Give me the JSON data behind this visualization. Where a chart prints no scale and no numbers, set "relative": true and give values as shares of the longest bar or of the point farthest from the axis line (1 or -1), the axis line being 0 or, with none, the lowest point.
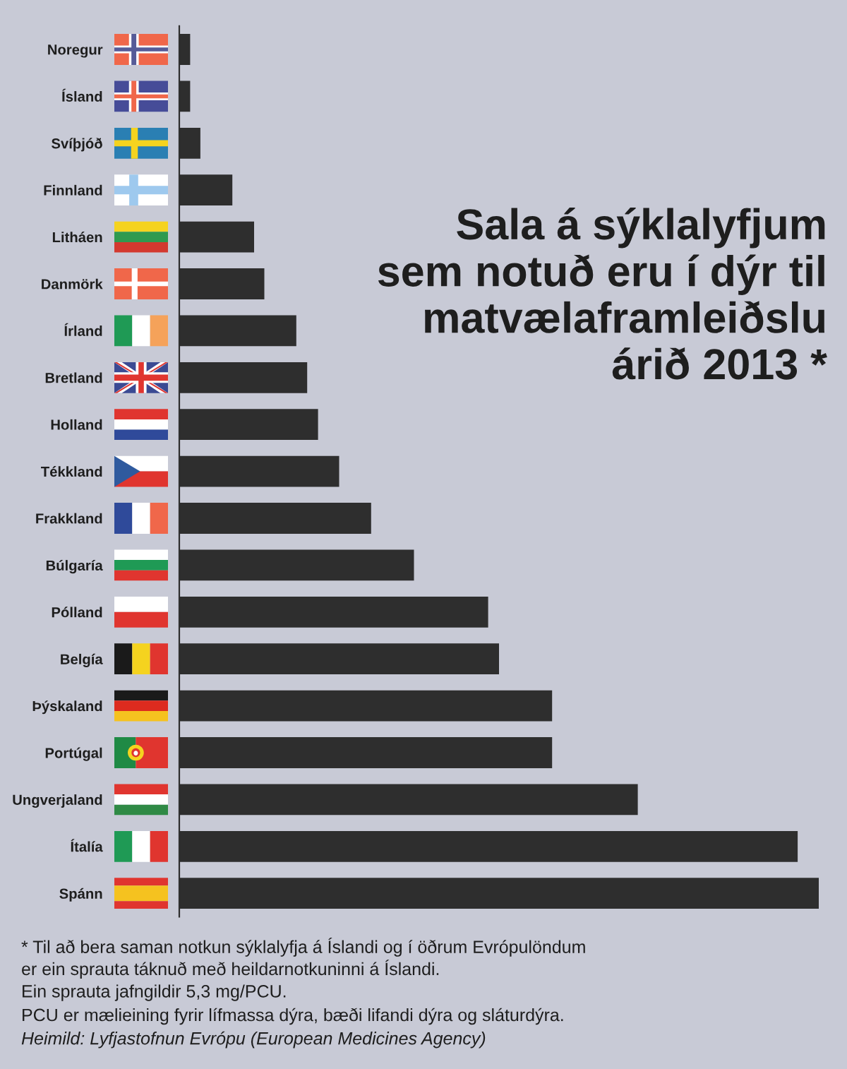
{
  "chart_data": {
    "type": "bar",
    "orientation": "horizontal",
    "relative": true,
    "title": "Sala á sýklalyfjum\nsem notuð eru í dýr til\nmatvælaframleiðslu\nárið 2013 *",
    "categories": [
      "Noregur",
      "Ísland",
      "Svíþjóð",
      "Finnland",
      "Litháen",
      "Danmörk",
      "Írland",
      "Bretland",
      "Holland",
      "Tékkland",
      "Frakkland",
      "Búlgaría",
      "Pólland",
      "Belgía",
      "Þýskaland",
      "Portúgal",
      "Ungverjaland",
      "Ítalía",
      "Spánn"
    ],
    "values": [
      0.017,
      0.017,
      0.033,
      0.083,
      0.117,
      0.133,
      0.183,
      0.2,
      0.217,
      0.25,
      0.3,
      0.367,
      0.483,
      0.5,
      0.583,
      0.583,
      0.717,
      0.967,
      1
    ],
    "color": "#2e2e2e",
    "annotations": [
      "* Til að bera saman notkun sýklalyfja á Íslandi og í öðrum Evrópulöndum\ner ein sprauta táknuð með heildarnotkuninni á Íslandi.",
      "Ein sprauta jafngildir 5,3 mg/PCU.",
      "PCU er mælieining fyrir lífmassa dýra, bæði lifandi dýra og sláturdýra.",
      "Heimild: Lyfjastofnun Evrópu (European Medicines Agency)"
    ]
  }
}
